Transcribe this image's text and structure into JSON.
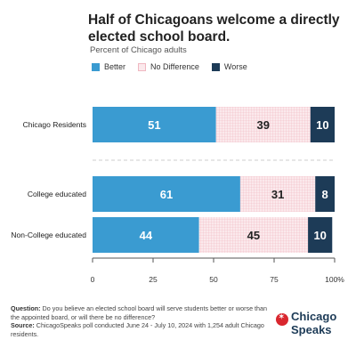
{
  "title": "Half of Chicagoans welcome a directly elected school board.",
  "subtitle": "Percent of Chicago adults",
  "colors": {
    "better": "#3a9bd1",
    "no_difference_bg": "#fbe9ec",
    "no_difference_grid": "#f0b7c1",
    "worse": "#1d3b57",
    "axis": "#555555",
    "separator": "#cccccc"
  },
  "chart_data": {
    "type": "bar",
    "orientation": "horizontal",
    "stacked": true,
    "categories": [
      "Chicago Residents",
      "College educated",
      "Non-College educated"
    ],
    "series": [
      {
        "name": "Better",
        "values": [
          51,
          61,
          44
        ]
      },
      {
        "name": "No Difference",
        "values": [
          39,
          31,
          45
        ]
      },
      {
        "name": "Worse",
        "values": [
          10,
          8,
          10
        ]
      }
    ],
    "xlim": [
      0,
      100
    ],
    "x_ticks": [
      "0",
      "25",
      "50",
      "75",
      "100%"
    ],
    "legend": "top-left",
    "grid": false
  },
  "footer": {
    "question_label": "Question:",
    "question_text": "Do you believe an elected school board will serve students better or worse than the appointed board, or will there be no difference?",
    "source_label": "Source:",
    "source_text": "ChicagoSpeaks poll conducted June 24 - July 10, 2024 with 1,254 adult Chicago residents."
  },
  "logo": {
    "line1": "Chicago",
    "line2": "Speaks"
  }
}
